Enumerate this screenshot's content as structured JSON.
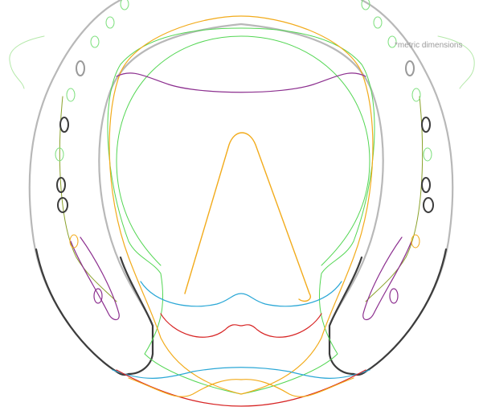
{
  "note": "*metric dimensions",
  "colors": {
    "shoe_outline": "#b8b8b8",
    "shoe_dark": "#3c3c3c",
    "green": "#53d653",
    "light_green": "#b3e8a8",
    "olive": "#8aa12a",
    "orange": "#f2ab1b",
    "light_orange": "#f6d98f",
    "purple": "#8c2f8f",
    "blue": "#2aa7d6",
    "red": "#d72424",
    "hole_gray": "#9a9a9a",
    "hole_green": "#7fe07f"
  }
}
